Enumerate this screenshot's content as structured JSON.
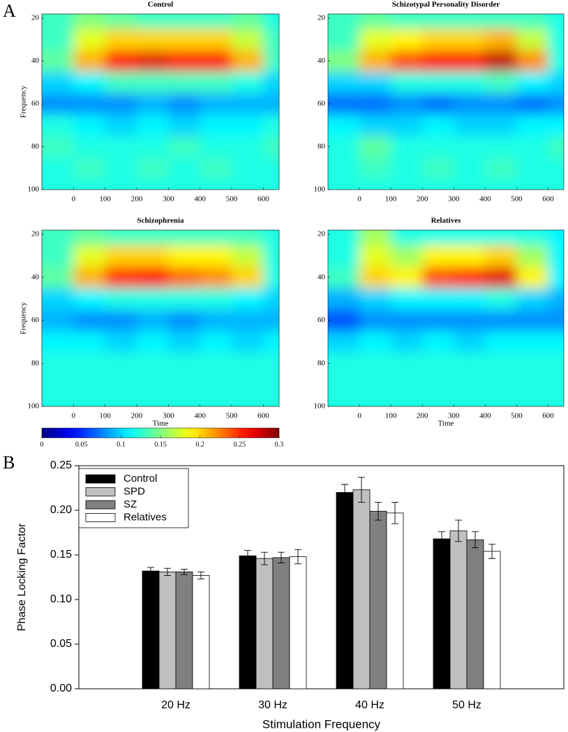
{
  "panels": [
    "A",
    "B"
  ],
  "colorbar": {
    "colormap": "jet",
    "lim": [
      0,
      0.3
    ],
    "ticks": [
      0,
      0.05,
      0.1,
      0.15,
      0.2,
      0.25,
      0.3
    ]
  },
  "chart_data": [
    {
      "type": "heatmap",
      "title": "Control",
      "ylabel": "Frequency",
      "x": [
        -50,
        50,
        150,
        250,
        350,
        450,
        550,
        650
      ],
      "y": [
        20,
        30,
        40,
        50,
        60,
        70,
        80,
        90,
        100
      ],
      "xlim": [
        -100,
        650
      ],
      "ylim": [
        18,
        100
      ],
      "xticks": [
        0,
        100,
        200,
        300,
        400,
        500,
        600
      ],
      "yticks": [
        20,
        40,
        60,
        80,
        100
      ],
      "values": [
        [
          0.13,
          0.15,
          0.14,
          0.13,
          0.13,
          0.13,
          0.14,
          0.12
        ],
        [
          0.13,
          0.18,
          0.2,
          0.2,
          0.2,
          0.2,
          0.17,
          0.13
        ],
        [
          0.14,
          0.21,
          0.26,
          0.27,
          0.26,
          0.26,
          0.21,
          0.13
        ],
        [
          0.1,
          0.11,
          0.13,
          0.13,
          0.13,
          0.13,
          0.12,
          0.1
        ],
        [
          0.08,
          0.08,
          0.08,
          0.09,
          0.08,
          0.09,
          0.09,
          0.09
        ],
        [
          0.12,
          0.11,
          0.1,
          0.11,
          0.1,
          0.11,
          0.11,
          0.12
        ],
        [
          0.13,
          0.12,
          0.12,
          0.12,
          0.13,
          0.12,
          0.12,
          0.13
        ],
        [
          0.12,
          0.13,
          0.12,
          0.13,
          0.12,
          0.13,
          0.12,
          0.12
        ],
        [
          0.12,
          0.12,
          0.12,
          0.12,
          0.12,
          0.12,
          0.12,
          0.12
        ]
      ]
    },
    {
      "type": "heatmap",
      "title": "Schizotypal Personality Disorder",
      "x": [
        -50,
        50,
        150,
        250,
        350,
        450,
        550,
        650
      ],
      "y": [
        20,
        30,
        40,
        50,
        60,
        70,
        80,
        90,
        100
      ],
      "xlim": [
        -100,
        650
      ],
      "ylim": [
        18,
        100
      ],
      "xticks": [
        0,
        100,
        200,
        300,
        400,
        500,
        600
      ],
      "yticks": [
        20,
        40,
        60,
        80,
        100
      ],
      "values": [
        [
          0.13,
          0.14,
          0.13,
          0.13,
          0.13,
          0.13,
          0.13,
          0.12
        ],
        [
          0.13,
          0.18,
          0.19,
          0.2,
          0.2,
          0.21,
          0.17,
          0.12
        ],
        [
          0.15,
          0.21,
          0.24,
          0.26,
          0.26,
          0.28,
          0.22,
          0.12
        ],
        [
          0.1,
          0.1,
          0.12,
          0.12,
          0.12,
          0.13,
          0.11,
          0.1
        ],
        [
          0.07,
          0.07,
          0.08,
          0.07,
          0.08,
          0.08,
          0.07,
          0.08
        ],
        [
          0.11,
          0.1,
          0.1,
          0.11,
          0.1,
          0.1,
          0.11,
          0.11
        ],
        [
          0.12,
          0.14,
          0.12,
          0.12,
          0.12,
          0.12,
          0.12,
          0.13
        ],
        [
          0.12,
          0.13,
          0.12,
          0.13,
          0.12,
          0.13,
          0.12,
          0.12
        ],
        [
          0.12,
          0.12,
          0.12,
          0.12,
          0.12,
          0.12,
          0.12,
          0.12
        ]
      ]
    },
    {
      "type": "heatmap",
      "title": "Schizophrenia",
      "ylabel": "Frequency",
      "xlabel": "Time",
      "x": [
        -50,
        50,
        150,
        250,
        350,
        450,
        550,
        650
      ],
      "y": [
        20,
        30,
        40,
        50,
        60,
        70,
        80,
        90,
        100
      ],
      "xlim": [
        -100,
        650
      ],
      "ylim": [
        18,
        100
      ],
      "xticks": [
        0,
        100,
        200,
        300,
        400,
        500,
        600
      ],
      "yticks": [
        20,
        40,
        60,
        80,
        100
      ],
      "values": [
        [
          0.13,
          0.14,
          0.13,
          0.13,
          0.13,
          0.13,
          0.13,
          0.12
        ],
        [
          0.13,
          0.18,
          0.2,
          0.2,
          0.19,
          0.19,
          0.17,
          0.12
        ],
        [
          0.14,
          0.21,
          0.25,
          0.26,
          0.23,
          0.22,
          0.2,
          0.12
        ],
        [
          0.1,
          0.11,
          0.12,
          0.12,
          0.12,
          0.12,
          0.11,
          0.1
        ],
        [
          0.09,
          0.08,
          0.08,
          0.09,
          0.08,
          0.09,
          0.09,
          0.09
        ],
        [
          0.11,
          0.11,
          0.1,
          0.11,
          0.1,
          0.11,
          0.1,
          0.11
        ],
        [
          0.12,
          0.12,
          0.12,
          0.12,
          0.12,
          0.12,
          0.12,
          0.12
        ],
        [
          0.12,
          0.12,
          0.12,
          0.12,
          0.12,
          0.12,
          0.12,
          0.12
        ],
        [
          0.12,
          0.12,
          0.12,
          0.12,
          0.12,
          0.12,
          0.12,
          0.12
        ]
      ]
    },
    {
      "type": "heatmap",
      "title": "Relatives",
      "xlabel": "Time",
      "x": [
        -50,
        50,
        150,
        250,
        350,
        450,
        550,
        650
      ],
      "y": [
        20,
        30,
        40,
        50,
        60,
        70,
        80,
        90,
        100
      ],
      "xlim": [
        -100,
        650
      ],
      "ylim": [
        18,
        100
      ],
      "xticks": [
        0,
        100,
        200,
        300,
        400,
        500,
        600
      ],
      "yticks": [
        20,
        40,
        60,
        80,
        100
      ],
      "values": [
        [
          0.12,
          0.16,
          0.12,
          0.12,
          0.12,
          0.12,
          0.12,
          0.11
        ],
        [
          0.12,
          0.18,
          0.16,
          0.19,
          0.19,
          0.2,
          0.16,
          0.11
        ],
        [
          0.13,
          0.2,
          0.19,
          0.24,
          0.25,
          0.27,
          0.19,
          0.11
        ],
        [
          0.09,
          0.1,
          0.11,
          0.11,
          0.11,
          0.12,
          0.1,
          0.09
        ],
        [
          0.06,
          0.08,
          0.08,
          0.08,
          0.08,
          0.08,
          0.08,
          0.08
        ],
        [
          0.1,
          0.11,
          0.1,
          0.11,
          0.1,
          0.11,
          0.11,
          0.11
        ],
        [
          0.12,
          0.12,
          0.12,
          0.12,
          0.12,
          0.12,
          0.12,
          0.12
        ],
        [
          0.12,
          0.12,
          0.12,
          0.12,
          0.12,
          0.12,
          0.12,
          0.12
        ],
        [
          0.12,
          0.12,
          0.12,
          0.12,
          0.12,
          0.12,
          0.12,
          0.12
        ]
      ]
    },
    {
      "type": "bar",
      "xlabel": "Stimulation Frequency",
      "ylabel": "Phase Locking Factor",
      "legend": "upper left",
      "categories": [
        "20 Hz",
        "30 Hz",
        "40 Hz",
        "50 Hz"
      ],
      "ylim": [
        0,
        0.25
      ],
      "yticks": [
        {
          "value": 0,
          "label": "0.00"
        },
        {
          "value": 0.05,
          "label": "0.05"
        },
        {
          "value": 0.1,
          "label": "0.10"
        },
        {
          "value": 0.15,
          "label": "0.15"
        },
        {
          "value": 0.2,
          "label": "0.20"
        },
        {
          "value": 0.25,
          "label": "0.25"
        }
      ],
      "series": [
        {
          "name": "Control",
          "color": "#000000",
          "values": [
            0.132,
            0.149,
            0.22,
            0.168
          ],
          "errors": [
            0.004,
            0.006,
            0.009,
            0.008
          ]
        },
        {
          "name": "SPD",
          "color": "#c0c0c0",
          "values": [
            0.131,
            0.146,
            0.223,
            0.177
          ],
          "errors": [
            0.004,
            0.007,
            0.014,
            0.012
          ]
        },
        {
          "name": "SZ",
          "color": "#808080",
          "values": [
            0.131,
            0.147,
            0.199,
            0.167
          ],
          "errors": [
            0.003,
            0.006,
            0.01,
            0.009
          ]
        },
        {
          "name": "Relatives",
          "color": "#ffffff",
          "values": [
            0.127,
            0.148,
            0.197,
            0.154
          ],
          "errors": [
            0.004,
            0.008,
            0.012,
            0.008
          ]
        }
      ]
    }
  ]
}
